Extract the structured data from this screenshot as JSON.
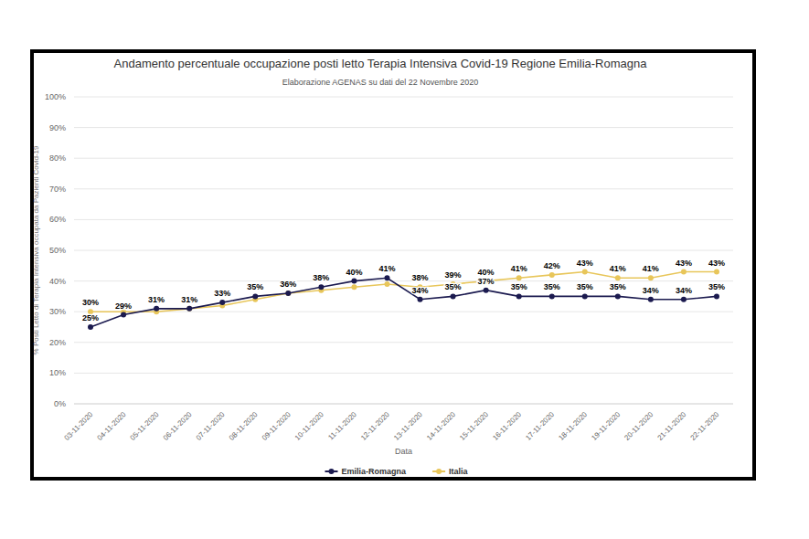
{
  "chart_data": {
    "type": "line",
    "title": "Andamento percentuale occupazione posti letto Terapia Intensiva Covid-19 Regione Emilia-Romagna",
    "subtitle": "Elaborazione AGENAS su dati del 22 Novembre 2020",
    "x_label": "Data",
    "y_label": "% Posti Letto di Terapia Intensiva occupata da Pazienti Covid-19",
    "categories": [
      "03-11-2020",
      "04-11-2020",
      "05-11-2020",
      "06-11-2020",
      "07-11-2020",
      "08-11-2020",
      "09-11-2020",
      "10-11-2020",
      "11-11-2020",
      "12-11-2020",
      "13-11-2020",
      "14-11-2020",
      "15-11-2020",
      "16-11-2020",
      "17-11-2020",
      "18-11-2020",
      "19-11-2020",
      "20-11-2020",
      "21-11-2020",
      "22-11-2020"
    ],
    "series": [
      {
        "name": "Emilia-Romagna",
        "color": "#1b1a4f",
        "marker": "circle",
        "values": [
          25,
          29,
          31,
          31,
          33,
          35,
          36,
          38,
          40,
          41,
          34,
          35,
          37,
          35,
          35,
          35,
          35,
          34,
          34,
          35
        ],
        "value_labels": [
          "25%",
          "29%",
          "31%",
          "31%",
          "33%",
          "35%",
          "36%",
          "38%",
          "40%",
          "41%",
          "34%",
          "35%",
          "37%",
          "35%",
          "35%",
          "35%",
          "35%",
          "34%",
          "34%",
          "35%"
        ]
      },
      {
        "name": "Italia",
        "color": "#e8c65a",
        "marker": "circle",
        "values": [
          30,
          30,
          30,
          31,
          32,
          34,
          36,
          37,
          38,
          39,
          38,
          39,
          40,
          41,
          42,
          43,
          41,
          41,
          43,
          43
        ],
        "value_labels": [
          "30%",
          null,
          null,
          null,
          null,
          null,
          null,
          null,
          null,
          null,
          "38%",
          "39%",
          "40%",
          "41%",
          "42%",
          "43%",
          "41%",
          "41%",
          "43%",
          "43%"
        ]
      }
    ],
    "ylim": [
      0,
      100
    ],
    "yticks": [
      {
        "value": 0,
        "label": "0%"
      },
      {
        "value": 10,
        "label": "10%"
      },
      {
        "value": 20,
        "label": "20%"
      },
      {
        "value": 30,
        "label": "30%"
      },
      {
        "value": 40,
        "label": "40%"
      },
      {
        "value": 50,
        "label": "50%"
      },
      {
        "value": 60,
        "label": "60%"
      },
      {
        "value": 70,
        "label": "70%"
      },
      {
        "value": 80,
        "label": "80%"
      },
      {
        "value": 90,
        "label": "90%"
      },
      {
        "value": 100,
        "label": "100%"
      }
    ],
    "grid": true,
    "legend": "bottom",
    "data_labels": true
  }
}
